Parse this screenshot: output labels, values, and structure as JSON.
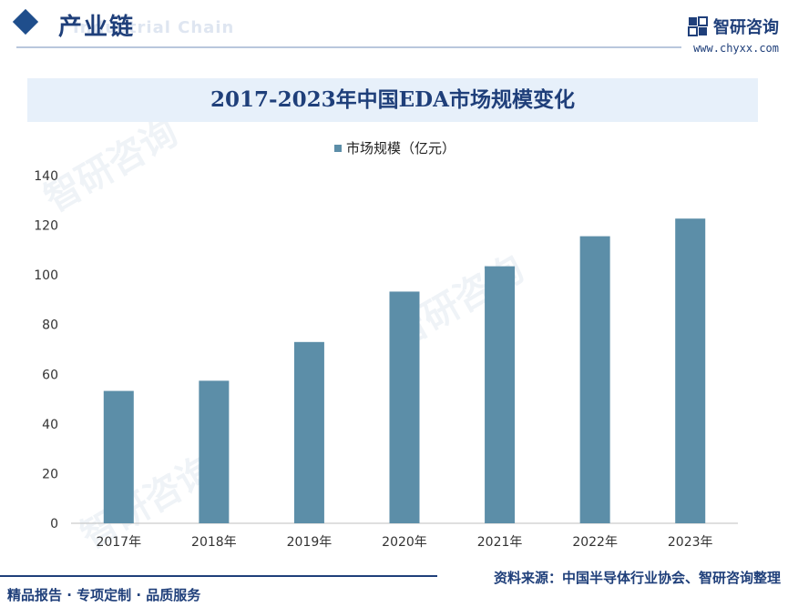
{
  "header": {
    "title": "产业链",
    "subtitle": "Industrial Chain"
  },
  "brand": {
    "name": "智研咨询",
    "url": "www.chyxx.com",
    "color": "#1f3f7a"
  },
  "footer": {
    "tagline": "精品报告 · 专项定制 · 品质服务",
    "source": "资料来源：中国半导体行业协会、智研咨询整理"
  },
  "chart_data": {
    "type": "bar",
    "title": "2017-2023年中国EDA市场规模变化",
    "categories": [
      "2017年",
      "2018年",
      "2019年",
      "2020年",
      "2021年",
      "2022年",
      "2023年"
    ],
    "series": [
      {
        "name": "市场规模（亿元）",
        "values": [
          53.3,
          57.4,
          73.0,
          93.3,
          103.5,
          115.6,
          122.7
        ]
      }
    ],
    "ylim": [
      0,
      140
    ],
    "yticks": [
      0,
      20,
      40,
      60,
      80,
      100,
      120,
      140
    ],
    "legend_position": "top-center",
    "grid": false,
    "bar_color": "#5c8ea8"
  }
}
